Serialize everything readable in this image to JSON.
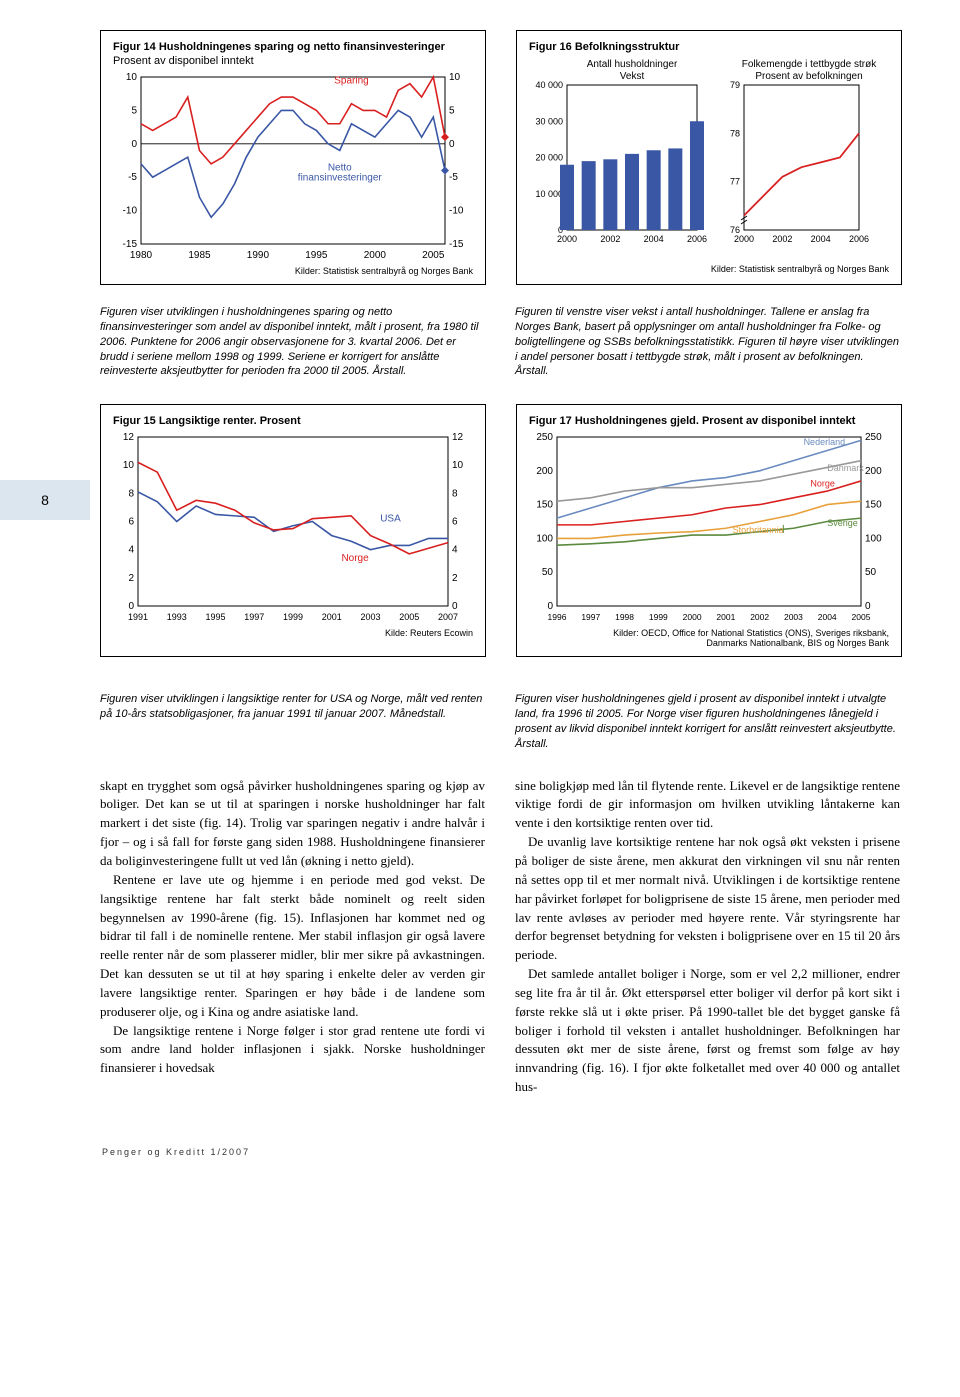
{
  "pageNumber": "8",
  "footer": "Penger og Kreditt 1/2007",
  "fig14": {
    "title": "Figur 14 Husholdningenes sparing og netto finansinvesteringer",
    "subtitle": "Prosent av disponibel inntekt",
    "label_sparing": "Sparing",
    "label_netto": "Netto\nfinansinvesteringer",
    "xticks": [
      "1980",
      "1985",
      "1990",
      "1995",
      "2000",
      "2005"
    ],
    "yticks": [
      "-15",
      "-10",
      "-5",
      "0",
      "5",
      "10"
    ],
    "source": "Kilder: Statistisk sentralbyrå og Norges Bank",
    "sparing_color": "#d92020",
    "netto_color": "#3a57a5",
    "sparing_data": [
      [
        1980,
        3
      ],
      [
        1981,
        2
      ],
      [
        1982,
        3
      ],
      [
        1983,
        4
      ],
      [
        1984,
        7
      ],
      [
        1985,
        -1
      ],
      [
        1986,
        -3
      ],
      [
        1987,
        -2
      ],
      [
        1988,
        0
      ],
      [
        1989,
        2
      ],
      [
        1990,
        4
      ],
      [
        1991,
        6
      ],
      [
        1992,
        7
      ],
      [
        1993,
        7
      ],
      [
        1994,
        6
      ],
      [
        1995,
        5
      ],
      [
        1996,
        3
      ],
      [
        1997,
        3
      ],
      [
        1998,
        6
      ],
      [
        1999,
        5
      ],
      [
        2000,
        5
      ],
      [
        2001,
        4
      ],
      [
        2002,
        8
      ],
      [
        2003,
        9
      ],
      [
        2004,
        7
      ],
      [
        2005,
        10
      ],
      [
        2006,
        1
      ]
    ],
    "netto_data": [
      [
        1980,
        -3
      ],
      [
        1981,
        -5
      ],
      [
        1982,
        -4
      ],
      [
        1983,
        -3
      ],
      [
        1984,
        -2
      ],
      [
        1985,
        -8
      ],
      [
        1986,
        -11
      ],
      [
        1987,
        -9
      ],
      [
        1988,
        -6
      ],
      [
        1989,
        -2
      ],
      [
        1990,
        1
      ],
      [
        1991,
        3
      ],
      [
        1992,
        5
      ],
      [
        1993,
        5
      ],
      [
        1994,
        3
      ],
      [
        1995,
        2
      ],
      [
        1996,
        0
      ],
      [
        1997,
        -1
      ],
      [
        1998,
        3
      ],
      [
        1999,
        2
      ],
      [
        2000,
        1
      ],
      [
        2001,
        3
      ],
      [
        2002,
        5
      ],
      [
        2003,
        4
      ],
      [
        2004,
        1
      ],
      [
        2005,
        4
      ],
      [
        2006,
        -4
      ]
    ]
  },
  "fig16": {
    "title": "Figur 16 Befolkningsstruktur",
    "left_title": "Antall husholdninger\nVekst",
    "right_title": "Folkemengde i tettbygde strøk\nProsent av befolkningen",
    "left_yticks": [
      "0",
      "10 000",
      "20 000",
      "30 000",
      "40 000"
    ],
    "right_yticks": [
      "76",
      "77",
      "78",
      "79"
    ],
    "xticks": [
      "2000",
      "2002",
      "2004",
      "2006"
    ],
    "source": "Kilder: Statistisk sentralbyrå og Norges Bank",
    "bar_color": "#3a57a5",
    "line_color": "#d92020",
    "bar_data": [
      [
        2000,
        18000
      ],
      [
        2001,
        19000
      ],
      [
        2002,
        19500
      ],
      [
        2003,
        21000
      ],
      [
        2004,
        22000
      ],
      [
        2005,
        22500
      ],
      [
        2006,
        30000
      ]
    ],
    "line_data": [
      [
        2000,
        76.3
      ],
      [
        2001,
        76.7
      ],
      [
        2002,
        77.1
      ],
      [
        2003,
        77.3
      ],
      [
        2004,
        77.4
      ],
      [
        2005,
        77.5
      ],
      [
        2006,
        78.0
      ]
    ]
  },
  "cap14": "Figuren viser utviklingen i husholdningenes sparing og netto finansinvesteringer som andel av disponibel inntekt, målt i prosent, fra 1980 til 2006. Punktene for 2006 angir observasjonene for 3. kvartal 2006. Det er brudd i seriene mellom 1998 og 1999. Seriene er korrigert for anslåtte reinvesterte aksjeutbytter for perioden fra 2000 til 2005. Årstall.",
  "cap16": "Figuren til venstre viser vekst i antall husholdninger. Tallene er anslag fra Norges Bank, basert på opplysninger om antall husholdninger fra Folke- og boligtellingene og SSBs befolkningsstatistikk. Figuren til høyre viser utviklingen i andel personer bosatt i tettbygde strøk, målt i prosent av befolkningen. Årstall.",
  "fig15": {
    "title": "Figur 15 Langsiktige renter. Prosent",
    "yticks": [
      "0",
      "2",
      "4",
      "6",
      "8",
      "10",
      "12"
    ],
    "xticks": [
      "1991",
      "1993",
      "1995",
      "1997",
      "1999",
      "2001",
      "2003",
      "2005",
      "2007"
    ],
    "label_usa": "USA",
    "label_norge": "Norge",
    "source": "Kilde: Reuters Ecowin",
    "usa_color": "#3a57a5",
    "norge_color": "#d92020",
    "usa_data": [
      [
        1991,
        8.1
      ],
      [
        1992,
        7.4
      ],
      [
        1993,
        6.0
      ],
      [
        1994,
        7.1
      ],
      [
        1995,
        6.5
      ],
      [
        1996,
        6.4
      ],
      [
        1997,
        6.3
      ],
      [
        1998,
        5.3
      ],
      [
        1999,
        5.7
      ],
      [
        2000,
        6.0
      ],
      [
        2001,
        5.0
      ],
      [
        2002,
        4.6
      ],
      [
        2003,
        4.0
      ],
      [
        2004,
        4.3
      ],
      [
        2005,
        4.3
      ],
      [
        2006,
        4.8
      ],
      [
        2007,
        4.8
      ]
    ],
    "norge_data": [
      [
        1991,
        10.2
      ],
      [
        1992,
        9.5
      ],
      [
        1993,
        6.8
      ],
      [
        1994,
        7.5
      ],
      [
        1995,
        7.3
      ],
      [
        1996,
        6.8
      ],
      [
        1997,
        5.9
      ],
      [
        1998,
        5.4
      ],
      [
        1999,
        5.5
      ],
      [
        2000,
        6.2
      ],
      [
        2001,
        6.3
      ],
      [
        2002,
        6.4
      ],
      [
        2003,
        5.0
      ],
      [
        2004,
        4.4
      ],
      [
        2005,
        3.7
      ],
      [
        2006,
        4.1
      ],
      [
        2007,
        4.5
      ]
    ]
  },
  "fig17": {
    "title": "Figur 17 Husholdningenes gjeld. Prosent av disponibel inntekt",
    "yticks": [
      "0",
      "50",
      "100",
      "150",
      "200",
      "250"
    ],
    "xticks": [
      "1996",
      "1997",
      "1998",
      "1999",
      "2000",
      "2001",
      "2002",
      "2003",
      "2004",
      "2005"
    ],
    "source": "Kilder: OECD, Office for National Statistics (ONS), Sveriges riksbank,\nDanmarks Nationalbank, BIS og Norges Bank",
    "labels": {
      "nederland": "Nederland",
      "danmark": "Danmark",
      "norge": "Norge",
      "sverige": "Sverige",
      "storbritannia": "Storbritannia"
    },
    "colors": {
      "nederland": "#6a8bc0",
      "danmark": "#999999",
      "norge": "#d92020",
      "sverige": "#5b8a3f",
      "storbritannia": "#e8a03b"
    },
    "data": {
      "nederland": [
        [
          1996,
          130
        ],
        [
          1997,
          145
        ],
        [
          1998,
          160
        ],
        [
          1999,
          175
        ],
        [
          2000,
          185
        ],
        [
          2001,
          190
        ],
        [
          2002,
          200
        ],
        [
          2003,
          215
        ],
        [
          2004,
          230
        ],
        [
          2005,
          245
        ]
      ],
      "danmark": [
        [
          1996,
          155
        ],
        [
          1997,
          160
        ],
        [
          1998,
          170
        ],
        [
          1999,
          175
        ],
        [
          2000,
          175
        ],
        [
          2001,
          180
        ],
        [
          2002,
          185
        ],
        [
          2003,
          195
        ],
        [
          2004,
          205
        ],
        [
          2005,
          215
        ]
      ],
      "norge": [
        [
          1996,
          120
        ],
        [
          1997,
          120
        ],
        [
          1998,
          125
        ],
        [
          1999,
          130
        ],
        [
          2000,
          135
        ],
        [
          2001,
          145
        ],
        [
          2002,
          150
        ],
        [
          2003,
          160
        ],
        [
          2004,
          170
        ],
        [
          2005,
          185
        ]
      ],
      "storbritannia": [
        [
          1996,
          100
        ],
        [
          1997,
          100
        ],
        [
          1998,
          105
        ],
        [
          1999,
          108
        ],
        [
          2000,
          110
        ],
        [
          2001,
          115
        ],
        [
          2002,
          125
        ],
        [
          2003,
          135
        ],
        [
          2004,
          150
        ],
        [
          2005,
          155
        ]
      ],
      "sverige": [
        [
          1996,
          90
        ],
        [
          1997,
          92
        ],
        [
          1998,
          95
        ],
        [
          1999,
          100
        ],
        [
          2000,
          105
        ],
        [
          2001,
          105
        ],
        [
          2002,
          110
        ],
        [
          2003,
          115
        ],
        [
          2004,
          125
        ],
        [
          2005,
          130
        ]
      ]
    }
  },
  "cap15": "Figuren viser utviklingen i langsiktige renter for USA og Norge, målt ved renten på 10-års statsobligasjoner, fra januar 1991 til januar 2007. Månedstall.",
  "cap17": "Figuren viser husholdningenes gjeld i prosent av disponibel inntekt i utvalgte land, fra 1996 til 2005. For Norge viser figuren husholdningenes lånegjeld i prosent av likvid disponibel inntekt korrigert for anslått reinvestert aksjeutbytte. Årstall.",
  "body_left": [
    "skapt en trygghet som også påvirker husholdningenes sparing og kjøp av boliger. Det kan se ut til at sparingen i norske husholdninger har falt markert i det siste (fig. 14). Trolig var sparingen negativ i andre halvår i fjor – og i så fall for første gang siden 1988. Husholdningene finansierer da boliginvesteringene fullt ut ved lån (økning i netto gjeld).",
    "Rentene er lave ute og hjemme i en periode med god vekst. De langsiktige rentene har falt sterkt både nominelt og reelt siden begynnelsen av 1990-årene (fig. 15). Inflasjonen har kommet ned og bidrar til fall i de nominelle rentene. Mer stabil inflasjon gir også lavere reelle renter når de som plasserer midler, blir mer sikre på avkastningen. Det kan dessuten se ut til at høy sparing i enkelte deler av verden gir lavere langsiktige renter. Sparingen er høy både i de landene som produserer olje, og i Kina og andre asiatiske land.",
    "De langsiktige rentene i Norge følger i stor grad rentene ute fordi vi som andre land holder inflasjonen i sjakk. Norske husholdninger finansierer i hovedsak"
  ],
  "body_right": [
    "sine boligkjøp med lån til flytende rente. Likevel er de langsiktige rentene viktige fordi de gir informasjon om hvilken utvikling låntakerne kan vente i den kortsiktige renten over tid.",
    "De uvanlig lave kortsiktige rentene har nok også økt veksten i prisene på boliger de siste årene, men akkurat den virkningen vil snu når renten nå settes opp til et mer normalt nivå. Utviklingen i de kortsiktige rentene har påvirket forløpet for boligprisene de siste 15 årene, men perioder med lav rente avløses av perioder med høyere rente. Vår styringsrente har derfor begrenset betydning for veksten i boligprisene over en 15 til 20 års periode.",
    "Det samlede antallet boliger i Norge, som er vel 2,2 millioner, endrer seg lite fra år til år. Økt etterspørsel etter boliger vil derfor på kort sikt i første rekke slå ut i økte priser. På 1990-tallet ble det bygget ganske få boliger i forhold til veksten i antallet husholdninger. Befolkningen har dessuten økt mer de siste årene, først og fremst som følge av høy innvandring (fig. 16). I fjor økte folketallet med over 40 000 og antallet hus-"
  ]
}
